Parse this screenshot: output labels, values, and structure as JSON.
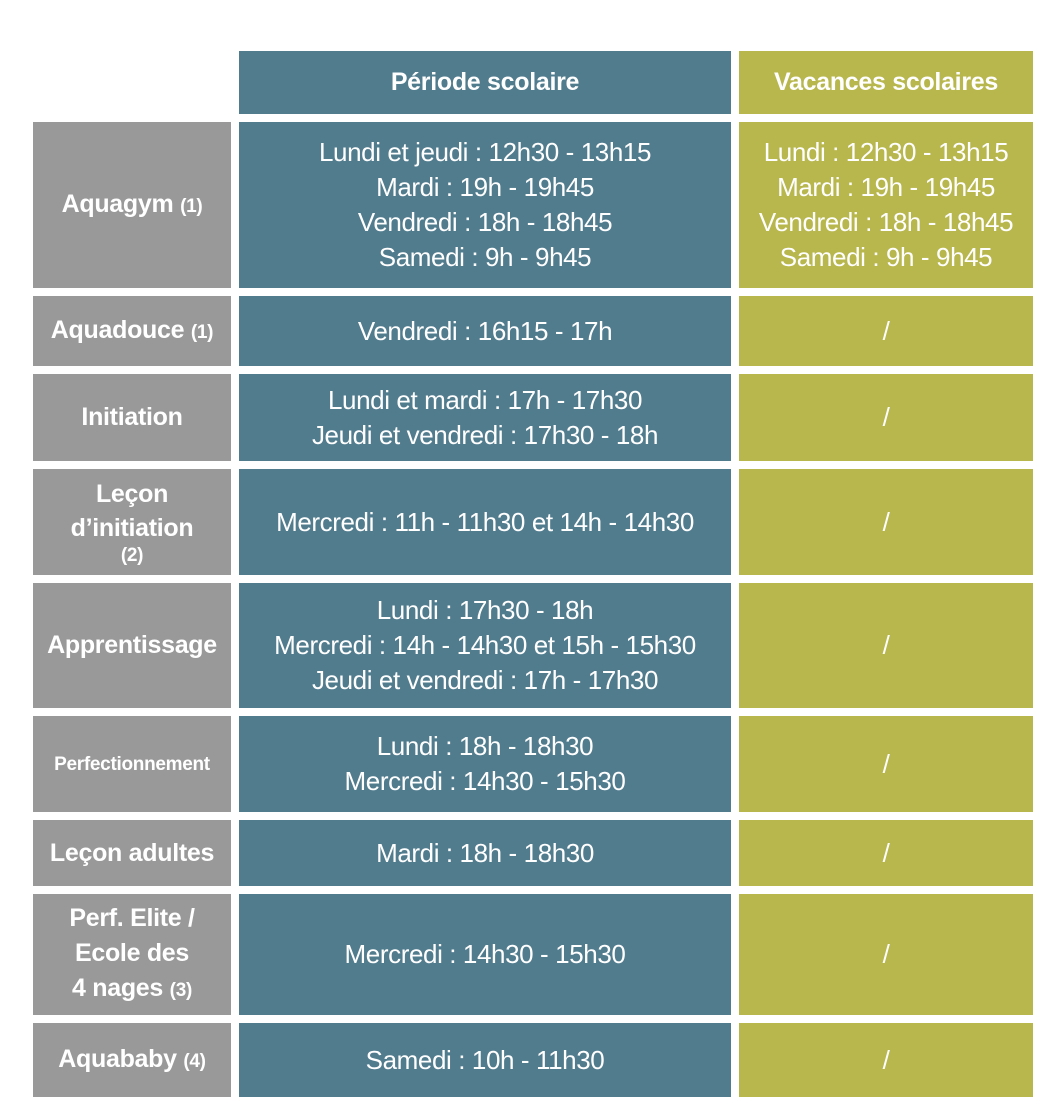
{
  "header": {
    "school": "Période scolaire",
    "vacation": "Vacances scolaires"
  },
  "colors": {
    "activity_bg": "#999999",
    "school_bg": "#517c8e",
    "vacation_bg": "#b8b74d",
    "text": "#ffffff"
  },
  "rows": [
    {
      "activity": "Aquagym",
      "note": "(1)",
      "school": [
        "Lundi et jeudi : 12h30 - 13h15",
        "Mardi : 19h - 19h45",
        "Vendredi : 18h - 18h45",
        "Samedi : 9h - 9h45"
      ],
      "vacation": [
        "Lundi : 12h30 - 13h15",
        "Mardi : 19h - 19h45",
        "Vendredi : 18h - 18h45",
        "Samedi : 9h - 9h45"
      ]
    },
    {
      "activity": "Aquadouce",
      "note": "(1)",
      "school": [
        "Vendredi : 16h15 - 17h"
      ],
      "vacation": [
        "/"
      ]
    },
    {
      "activity": "Initiation",
      "school": [
        "Lundi et mardi : 17h - 17h30",
        "Jeudi et vendredi : 17h30 - 18h"
      ],
      "vacation": [
        "/"
      ]
    },
    {
      "activity_lines": [
        "Leçon",
        "d’initiation"
      ],
      "note": "(2)",
      "school": [
        "Mercredi : 11h - 11h30 et 14h - 14h30"
      ],
      "vacation": [
        "/"
      ]
    },
    {
      "activity": "Apprentissage",
      "school": [
        "Lundi : 17h30 - 18h",
        "Mercredi : 14h - 14h30 et 15h - 15h30",
        "Jeudi et vendredi : 17h - 17h30"
      ],
      "vacation": [
        "/"
      ]
    },
    {
      "activity": "Perfectionnement",
      "school": [
        "Lundi : 18h - 18h30",
        "Mercredi : 14h30 - 15h30"
      ],
      "vacation": [
        "/"
      ]
    },
    {
      "activity": "Leçon adultes",
      "school": [
        "Mardi : 18h - 18h30"
      ],
      "vacation": [
        "/"
      ]
    },
    {
      "activity_lines": [
        "Perf. Elite /",
        "Ecole des",
        "4 nages"
      ],
      "note": "(3)",
      "school": [
        "Mercredi : 14h30 - 15h30"
      ],
      "vacation": [
        "/"
      ]
    },
    {
      "activity": "Aquababy",
      "note": "(4)",
      "school": [
        "Samedi : 10h - 11h30"
      ],
      "vacation": [
        "/"
      ]
    }
  ]
}
